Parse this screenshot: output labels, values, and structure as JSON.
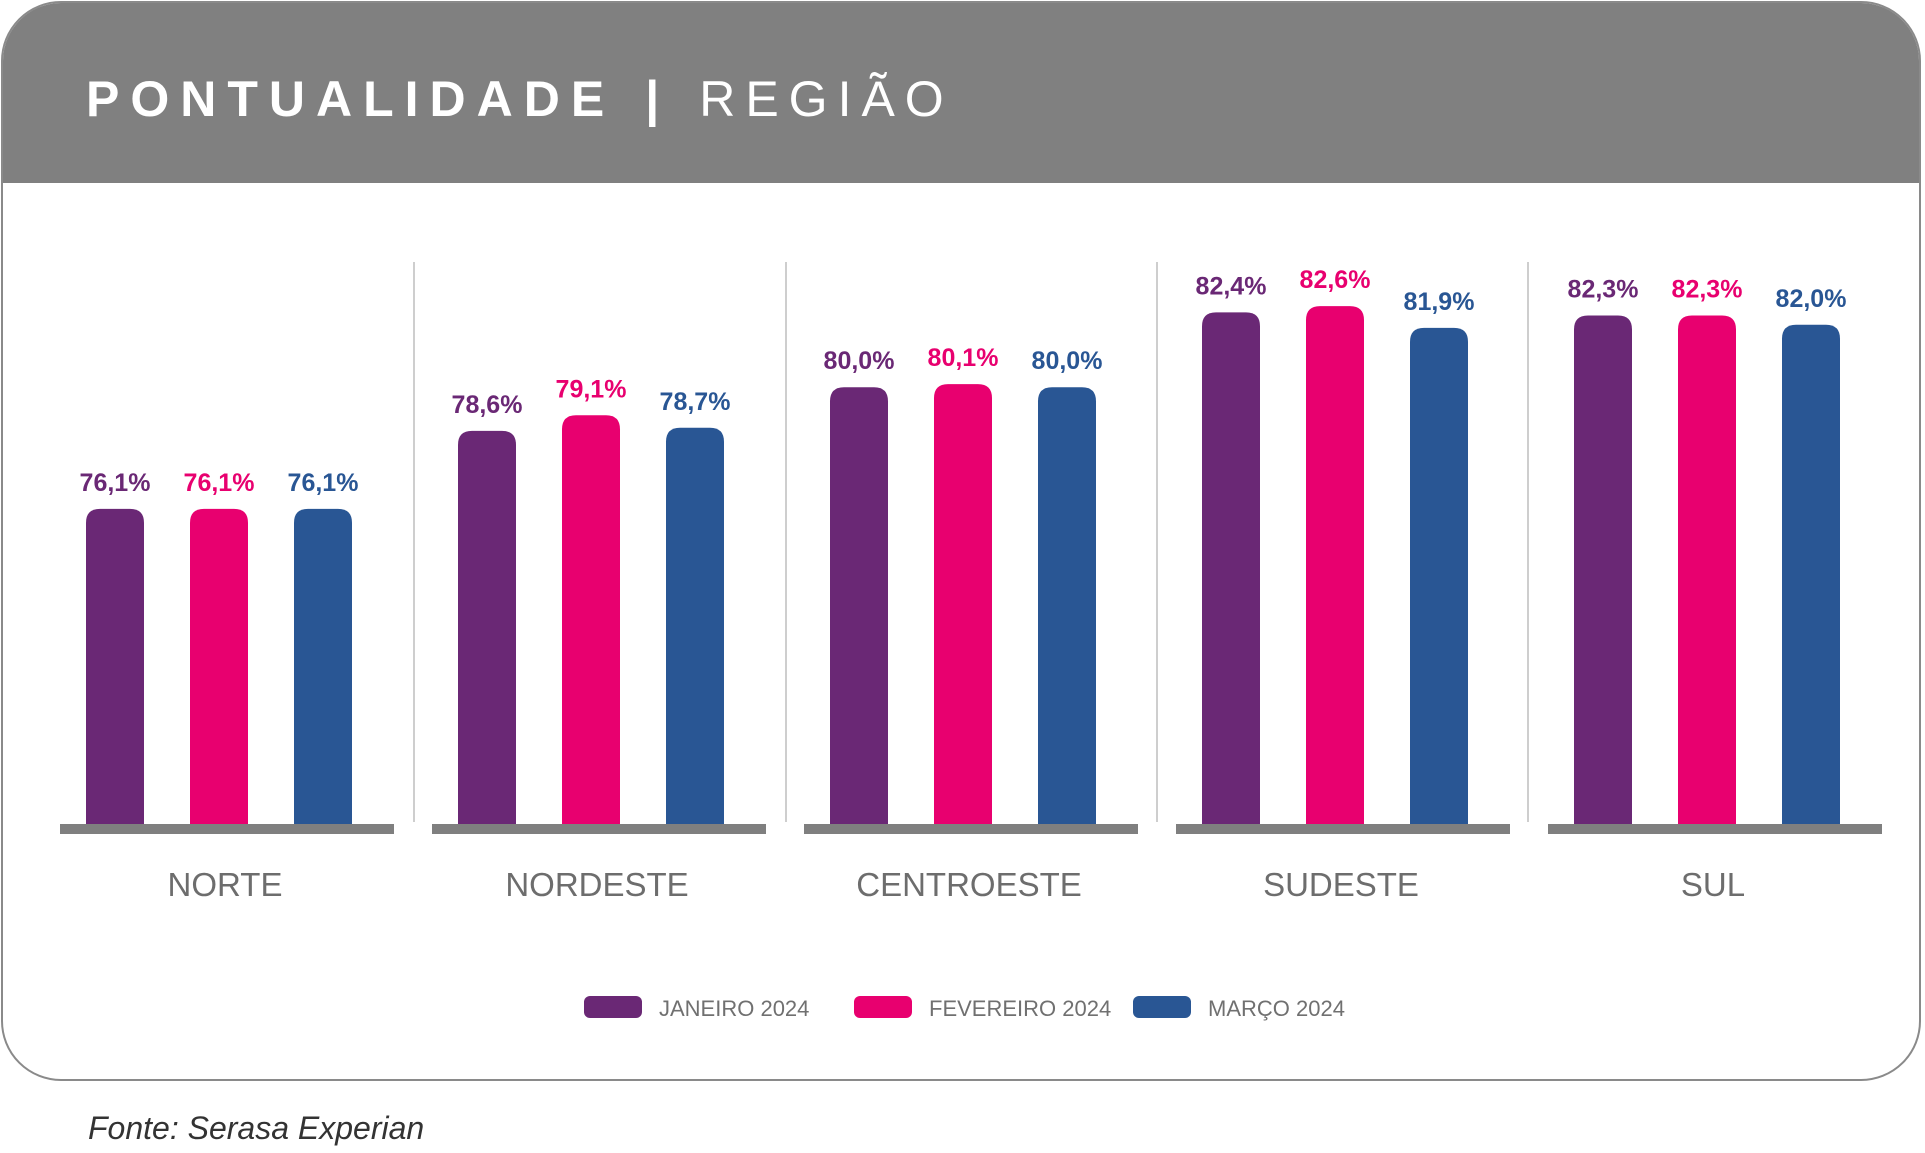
{
  "header": {
    "title_bold": "PONTUALIDADE",
    "separator": "|",
    "title_light": "REGIÃO"
  },
  "source": "Fonte: Serasa Experian",
  "colors": {
    "header_bg": "#808080",
    "janeiro": "#6a2875",
    "fevereiro": "#e8006f",
    "marco": "#295694",
    "baseline": "#7f7f7f",
    "category_text": "#6d6d6d"
  },
  "chart_data": {
    "type": "bar",
    "categories": [
      "NORTE",
      "NORDESTE",
      "CENTROESTE",
      "SUDESTE",
      "SUL"
    ],
    "series": [
      {
        "name": "JANEIRO 2024",
        "values": [
          76.1,
          78.6,
          80.0,
          82.4,
          82.3
        ],
        "labels": [
          "76,1%",
          "78,6%",
          "80,0%",
          "82,4%",
          "82,3%"
        ]
      },
      {
        "name": "FEVEREIRO 2024",
        "values": [
          76.1,
          79.1,
          80.1,
          82.6,
          82.3
        ],
        "labels": [
          "76,1%",
          "79,1%",
          "80,1%",
          "82,6%",
          "82,3%"
        ]
      },
      {
        "name": "MARÇO 2024",
        "values": [
          76.1,
          78.7,
          80.0,
          81.9,
          82.0
        ],
        "labels": [
          "76,1%",
          "78,7%",
          "80,0%",
          "81,9%",
          "82,0%"
        ]
      }
    ],
    "unit": "%",
    "grid": false,
    "legend_position": "bottom-center"
  }
}
